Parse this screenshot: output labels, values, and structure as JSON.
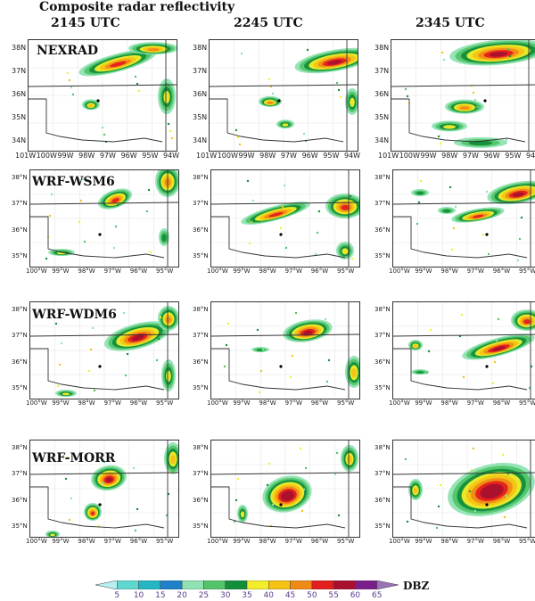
{
  "figure": {
    "title": "Composite radar reflectivity",
    "times": [
      "2145 UTC",
      "2245 UTC",
      "2345 UTC"
    ],
    "rows": [
      "NEXRAD",
      "WRF-WSM6",
      "WRF-WDM6",
      "WRF-MORR"
    ],
    "obs_lat_ticks": [
      "38N",
      "37N",
      "36N",
      "35N",
      "34N"
    ],
    "obs_lon_ticks": [
      "101W",
      "100W",
      "99W",
      "98W",
      "97W",
      "96W",
      "95W",
      "94W"
    ],
    "model_lat_ticks": [
      "38°N",
      "37°N",
      "36°N",
      "35°N"
    ],
    "model_lon_ticks": [
      "100°W",
      "99°W",
      "98°W",
      "97°W",
      "96°W",
      "95°W"
    ]
  },
  "colorbar": {
    "levels": [
      "5",
      "10",
      "15",
      "20",
      "25",
      "30",
      "35",
      "40",
      "45",
      "50",
      "55",
      "60",
      "65"
    ],
    "colors": [
      "#b7f0f0",
      "#5fd8d0",
      "#24b6c2",
      "#1f82c8",
      "#8fe3b2",
      "#52c46b",
      "#138f3a",
      "#f4ee2a",
      "#f6c214",
      "#f08a15",
      "#e41d1d",
      "#a8102e",
      "#7a1f8a",
      "#9a73b4"
    ],
    "unit": "DBZ"
  }
}
